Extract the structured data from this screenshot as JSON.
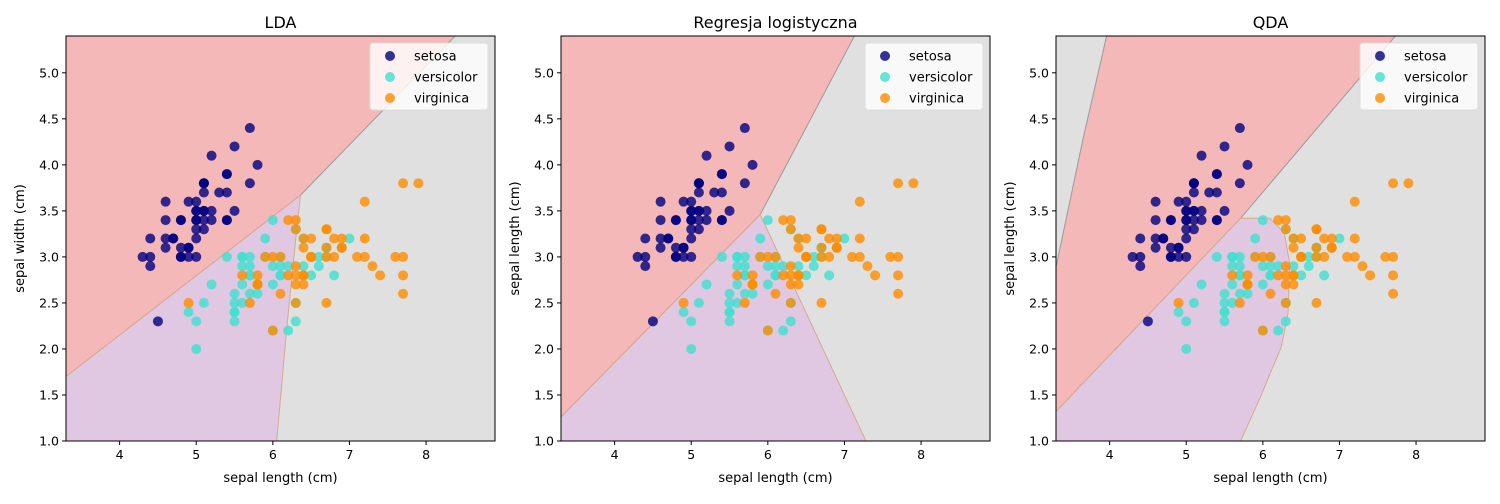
{
  "chart_data": {
    "type": "scatter",
    "xlim": [
      3.3,
      8.9
    ],
    "ylim": [
      1.0,
      5.4
    ],
    "xticks": [
      4,
      5,
      6,
      7,
      8
    ],
    "yticks": [
      "1.0",
      "1.5",
      "2.0",
      "2.5",
      "3.0",
      "3.5",
      "4.0",
      "4.5",
      "5.0"
    ],
    "legend_position": "top-right",
    "series": [
      {
        "name": "setosa",
        "color": "#000080",
        "points": [
          [
            5.1,
            3.5
          ],
          [
            4.9,
            3.0
          ],
          [
            4.7,
            3.2
          ],
          [
            4.6,
            3.1
          ],
          [
            5.0,
            3.6
          ],
          [
            5.4,
            3.9
          ],
          [
            4.6,
            3.4
          ],
          [
            5.0,
            3.4
          ],
          [
            4.4,
            2.9
          ],
          [
            4.9,
            3.1
          ],
          [
            5.4,
            3.7
          ],
          [
            4.8,
            3.4
          ],
          [
            4.8,
            3.0
          ],
          [
            4.3,
            3.0
          ],
          [
            5.8,
            4.0
          ],
          [
            5.7,
            4.4
          ],
          [
            5.4,
            3.9
          ],
          [
            5.1,
            3.5
          ],
          [
            5.7,
            3.8
          ],
          [
            5.1,
            3.8
          ],
          [
            5.4,
            3.4
          ],
          [
            5.1,
            3.7
          ],
          [
            4.6,
            3.6
          ],
          [
            5.1,
            3.3
          ],
          [
            4.8,
            3.4
          ],
          [
            5.0,
            3.0
          ],
          [
            5.0,
            3.4
          ],
          [
            5.2,
            3.5
          ],
          [
            5.2,
            3.4
          ],
          [
            4.7,
            3.2
          ],
          [
            4.8,
            3.1
          ],
          [
            5.4,
            3.4
          ],
          [
            5.2,
            4.1
          ],
          [
            5.5,
            4.2
          ],
          [
            4.9,
            3.1
          ],
          [
            5.0,
            3.2
          ],
          [
            5.5,
            3.5
          ],
          [
            4.9,
            3.6
          ],
          [
            4.4,
            3.0
          ],
          [
            5.1,
            3.4
          ],
          [
            5.0,
            3.5
          ],
          [
            4.5,
            2.3
          ],
          [
            4.4,
            3.2
          ],
          [
            5.0,
            3.5
          ],
          [
            5.1,
            3.8
          ],
          [
            4.8,
            3.0
          ],
          [
            5.1,
            3.8
          ],
          [
            4.6,
            3.2
          ],
          [
            5.3,
            3.7
          ],
          [
            5.0,
            3.3
          ]
        ]
      },
      {
        "name": "versicolor",
        "color": "#40e0d0",
        "points": [
          [
            7.0,
            3.2
          ],
          [
            6.4,
            3.2
          ],
          [
            6.9,
            3.1
          ],
          [
            5.5,
            2.3
          ],
          [
            6.5,
            2.8
          ],
          [
            5.7,
            2.8
          ],
          [
            6.3,
            3.3
          ],
          [
            4.9,
            2.4
          ],
          [
            6.6,
            2.9
          ],
          [
            5.2,
            2.7
          ],
          [
            5.0,
            2.0
          ],
          [
            5.9,
            3.0
          ],
          [
            6.0,
            2.2
          ],
          [
            6.1,
            2.9
          ],
          [
            5.6,
            2.9
          ],
          [
            6.7,
            3.1
          ],
          [
            5.6,
            3.0
          ],
          [
            5.8,
            2.7
          ],
          [
            6.2,
            2.2
          ],
          [
            5.6,
            2.5
          ],
          [
            5.9,
            3.2
          ],
          [
            6.1,
            2.8
          ],
          [
            6.3,
            2.5
          ],
          [
            6.1,
            2.8
          ],
          [
            6.4,
            2.9
          ],
          [
            6.6,
            3.0
          ],
          [
            6.8,
            2.8
          ],
          [
            6.7,
            3.0
          ],
          [
            6.0,
            2.9
          ],
          [
            5.7,
            2.6
          ],
          [
            5.5,
            2.4
          ],
          [
            5.5,
            2.4
          ],
          [
            5.8,
            2.7
          ],
          [
            6.0,
            2.7
          ],
          [
            5.4,
            3.0
          ],
          [
            6.0,
            3.4
          ],
          [
            6.7,
            3.1
          ],
          [
            6.3,
            2.3
          ],
          [
            5.6,
            3.0
          ],
          [
            5.5,
            2.5
          ],
          [
            5.5,
            2.6
          ],
          [
            6.1,
            3.0
          ],
          [
            5.8,
            2.6
          ],
          [
            5.0,
            2.3
          ],
          [
            5.6,
            2.7
          ],
          [
            5.7,
            3.0
          ],
          [
            5.7,
            2.9
          ],
          [
            6.2,
            2.9
          ],
          [
            5.1,
            2.5
          ],
          [
            5.7,
            2.8
          ]
        ]
      },
      {
        "name": "virginica",
        "color": "#ff8c00",
        "points": [
          [
            6.3,
            3.3
          ],
          [
            5.8,
            2.7
          ],
          [
            7.1,
            3.0
          ],
          [
            6.3,
            2.9
          ],
          [
            6.5,
            3.0
          ],
          [
            7.6,
            3.0
          ],
          [
            4.9,
            2.5
          ],
          [
            7.3,
            2.9
          ],
          [
            6.7,
            2.5
          ],
          [
            7.2,
            3.6
          ],
          [
            6.5,
            3.2
          ],
          [
            6.4,
            2.7
          ],
          [
            6.8,
            3.0
          ],
          [
            5.7,
            2.5
          ],
          [
            5.8,
            2.8
          ],
          [
            6.4,
            3.2
          ],
          [
            6.5,
            3.0
          ],
          [
            7.7,
            3.8
          ],
          [
            7.7,
            2.6
          ],
          [
            6.0,
            2.2
          ],
          [
            6.9,
            3.2
          ],
          [
            5.6,
            2.8
          ],
          [
            7.7,
            2.8
          ],
          [
            6.3,
            2.7
          ],
          [
            6.7,
            3.3
          ],
          [
            7.2,
            3.2
          ],
          [
            6.2,
            2.8
          ],
          [
            6.1,
            3.0
          ],
          [
            6.4,
            2.8
          ],
          [
            7.2,
            3.0
          ],
          [
            7.4,
            2.8
          ],
          [
            7.9,
            3.8
          ],
          [
            6.4,
            2.8
          ],
          [
            6.3,
            2.8
          ],
          [
            6.1,
            2.6
          ],
          [
            7.7,
            3.0
          ],
          [
            6.3,
            3.4
          ],
          [
            6.4,
            3.1
          ],
          [
            6.0,
            3.0
          ],
          [
            6.9,
            3.1
          ],
          [
            6.7,
            3.1
          ],
          [
            6.9,
            3.1
          ],
          [
            5.8,
            2.7
          ],
          [
            6.8,
            3.2
          ],
          [
            6.7,
            3.3
          ],
          [
            6.7,
            3.0
          ],
          [
            6.3,
            2.5
          ],
          [
            6.5,
            3.0
          ],
          [
            6.2,
            3.4
          ],
          [
            5.9,
            3.0
          ]
        ]
      }
    ],
    "region_colors": {
      "setosa": "#f4b8b8",
      "versicolor": "#e0c8e2",
      "virginica": "#e0e0e0"
    },
    "panels": [
      {
        "title": "LDA",
        "xlabel": "sepal length (cm)",
        "ylabel": "sepal width (cm)",
        "regions": {
          "setosa": [
            [
              3.3,
              1.7
            ],
            [
              6.36,
              3.67
            ],
            [
              8.38,
              5.4
            ],
            [
              3.3,
              5.4
            ]
          ],
          "versicolor": [
            [
              3.3,
              1.0
            ],
            [
              3.3,
              1.7
            ],
            [
              6.36,
              3.67
            ],
            [
              6.3,
              3.2
            ],
            [
              6.18,
              2.21
            ],
            [
              6.05,
              1.0
            ]
          ]
        }
      },
      {
        "title": "Regresja logistyczna",
        "xlabel": "sepal length (cm)",
        "ylabel": "sepal length (cm)",
        "regions": {
          "setosa": [
            [
              3.3,
              1.26
            ],
            [
              5.9,
              3.46
            ],
            [
              7.13,
              5.4
            ],
            [
              3.3,
              5.4
            ]
          ],
          "versicolor": [
            [
              3.3,
              1.0
            ],
            [
              3.3,
              1.26
            ],
            [
              5.9,
              3.46
            ],
            [
              7.28,
              1.0
            ]
          ]
        }
      },
      {
        "title": "QDA",
        "xlabel": "sepal length (cm)",
        "ylabel": "sepal length (cm)",
        "regions": {
          "setosa": [
            [
              3.3,
              1.32
            ],
            [
              5.71,
              3.42
            ],
            [
              7.73,
              5.4
            ],
            [
              3.96,
              5.4
            ],
            [
              3.65,
              4.27
            ],
            [
              3.3,
              2.89
            ]
          ],
          "versicolor": [
            [
              3.3,
              1.0
            ],
            [
              3.3,
              1.32
            ],
            [
              5.71,
              3.42
            ],
            [
              6.09,
              3.42
            ],
            [
              6.28,
              3.26
            ],
            [
              6.35,
              2.93
            ],
            [
              6.33,
              2.39
            ],
            [
              6.24,
              2.02
            ],
            [
              5.97,
              1.48
            ],
            [
              5.71,
              1.0
            ]
          ]
        }
      }
    ]
  }
}
